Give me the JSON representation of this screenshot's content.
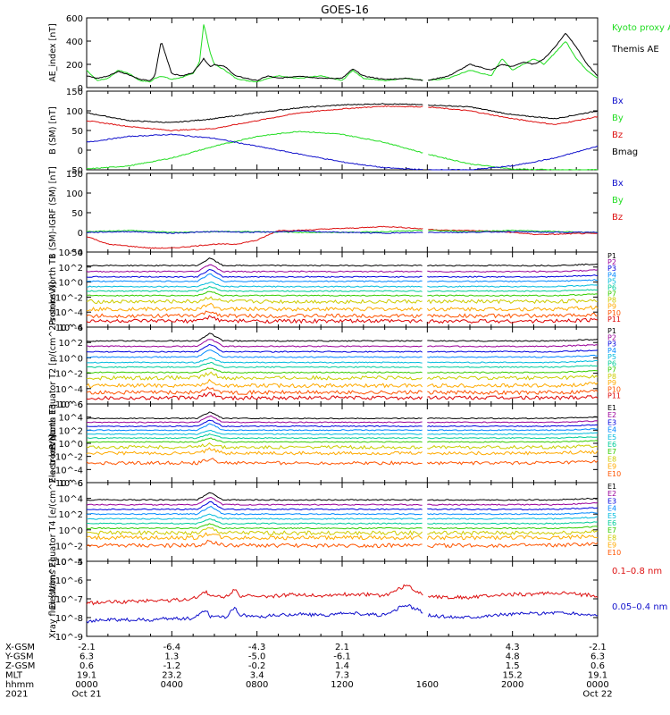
{
  "title": "GOES-16",
  "colors": {
    "black": "#000000",
    "green": "#22dd22",
    "red": "#dd1111",
    "blue": "#1111cc",
    "p_colors": [
      "#000000",
      "#990099",
      "#0000dd",
      "#0088ff",
      "#00bbdd",
      "#00cc99",
      "#33cc00",
      "#cccc00",
      "#ffaa00",
      "#ff5500",
      "#dd0000"
    ]
  },
  "chart_data": [
    {
      "type": "line",
      "id": "ae",
      "ylabel": "AE_index [nT]",
      "ylim": [
        0,
        600
      ],
      "yticks": [
        "0",
        "200",
        "400",
        "600"
      ],
      "legend": [
        {
          "name": "Kyoto proxy AE",
          "color": "green"
        },
        {
          "name": "Themis AE",
          "color": "black"
        }
      ],
      "series": [
        {
          "name": "Kyoto proxy AE",
          "color": "green",
          "x": [
            0,
            0.5,
            1,
            1.5,
            2,
            2.5,
            3,
            3.2,
            3.5,
            4,
            4.5,
            5,
            5.3,
            5.5,
            5.8,
            6,
            6.5,
            7,
            7.5,
            8,
            8.5,
            9,
            10,
            11,
            12,
            12.5,
            13,
            14,
            15,
            16,
            17,
            18,
            19,
            19.5,
            20,
            20.5,
            21,
            21.5,
            22,
            22.5,
            23,
            23.5,
            24
          ],
          "y": [
            150,
            60,
            80,
            150,
            120,
            60,
            50,
            80,
            100,
            70,
            90,
            120,
            220,
            550,
            300,
            200,
            150,
            80,
            60,
            50,
            80,
            100,
            80,
            100,
            60,
            150,
            80,
            60,
            80,
            60,
            80,
            150,
            100,
            250,
            150,
            200,
            250,
            200,
            300,
            400,
            250,
            150,
            80
          ]
        },
        {
          "name": "Themis AE",
          "color": "black",
          "x": [
            0,
            0.5,
            1,
            1.5,
            2,
            2.5,
            3,
            3.2,
            3.5,
            4,
            4.5,
            5,
            5.3,
            5.5,
            5.8,
            6,
            6.5,
            7,
            7.5,
            8,
            8.5,
            9,
            10,
            11,
            12,
            12.5,
            13,
            14,
            15,
            16,
            17,
            18,
            19,
            19.5,
            20,
            20.5,
            21,
            21.5,
            22,
            22.5,
            23,
            23.5,
            24
          ],
          "y": [
            100,
            80,
            100,
            140,
            110,
            70,
            60,
            100,
            400,
            120,
            100,
            130,
            200,
            250,
            180,
            200,
            180,
            100,
            80,
            60,
            100,
            80,
            100,
            80,
            80,
            160,
            100,
            70,
            80,
            60,
            100,
            200,
            150,
            200,
            180,
            220,
            200,
            250,
            350,
            470,
            350,
            200,
            100
          ]
        }
      ]
    },
    {
      "type": "line",
      "id": "bsm",
      "ylabel": "B (SM) [nT]",
      "ylim": [
        -50,
        150
      ],
      "yticks": [
        "-50",
        "0",
        "50",
        "100",
        "150"
      ],
      "legend": [
        {
          "name": "Bx",
          "color": "blue"
        },
        {
          "name": "By",
          "color": "green"
        },
        {
          "name": "Bz",
          "color": "red"
        },
        {
          "name": "Bmag",
          "color": "black"
        }
      ],
      "series": [
        {
          "name": "Bmag",
          "color": "black",
          "x": [
            0,
            2,
            4,
            6,
            8,
            10,
            12,
            14,
            16,
            18,
            20,
            22,
            24
          ],
          "y": [
            95,
            75,
            70,
            80,
            95,
            108,
            115,
            118,
            115,
            110,
            90,
            80,
            100
          ]
        },
        {
          "name": "Bz",
          "color": "red",
          "x": [
            0,
            2,
            4,
            6,
            8,
            10,
            12,
            14,
            16,
            18,
            20,
            22,
            24
          ],
          "y": [
            75,
            60,
            50,
            55,
            75,
            95,
            105,
            112,
            110,
            100,
            80,
            65,
            85
          ]
        },
        {
          "name": "By",
          "color": "green",
          "x": [
            0,
            2,
            4,
            6,
            8,
            10,
            12,
            14,
            16,
            18,
            20,
            22,
            24
          ],
          "y": [
            -48,
            -40,
            -20,
            10,
            35,
            48,
            40,
            20,
            -10,
            -35,
            -48,
            -50,
            -50
          ]
        },
        {
          "name": "Bx",
          "color": "blue",
          "x": [
            0,
            2,
            4,
            6,
            8,
            10,
            12,
            14,
            16,
            18,
            20,
            22,
            24
          ],
          "y": [
            20,
            35,
            40,
            30,
            10,
            -10,
            -30,
            -45,
            -50,
            -50,
            -40,
            -20,
            10
          ]
        }
      ]
    },
    {
      "type": "line",
      "id": "bdiff",
      "ylabel": "B (SM)-IGRF (SM) [nT]",
      "ylim": [
        -50,
        150
      ],
      "yticks": [
        "-50",
        "0",
        "50",
        "100",
        "150"
      ],
      "legend": [
        {
          "name": "Bx",
          "color": "blue"
        },
        {
          "name": "By",
          "color": "green"
        },
        {
          "name": "Bz",
          "color": "red"
        }
      ],
      "series": [
        {
          "name": "Bz",
          "color": "red",
          "x": [
            0,
            1,
            2,
            3,
            4,
            5,
            6,
            7,
            8,
            9,
            10,
            11,
            12,
            13,
            14,
            15,
            16,
            17,
            18,
            19,
            20,
            21,
            22,
            23,
            24
          ],
          "y": [
            -10,
            -30,
            -35,
            -40,
            -40,
            -35,
            -30,
            -30,
            -20,
            5,
            5,
            8,
            10,
            12,
            15,
            12,
            8,
            5,
            5,
            3,
            0,
            -5,
            -5,
            -3,
            -3
          ]
        },
        {
          "name": "By",
          "color": "green",
          "x": [
            0,
            2,
            4,
            6,
            8,
            10,
            12,
            14,
            16,
            18,
            20,
            22,
            24
          ],
          "y": [
            2,
            5,
            0,
            2,
            2,
            0,
            0,
            2,
            5,
            2,
            5,
            2,
            0
          ]
        },
        {
          "name": "Bx",
          "color": "blue",
          "x": [
            0,
            2,
            4,
            6,
            8,
            10,
            12,
            14,
            16,
            18,
            20,
            22,
            24
          ],
          "y": [
            0,
            2,
            -2,
            2,
            0,
            3,
            0,
            -2,
            0,
            0,
            2,
            0,
            0
          ]
        }
      ]
    },
    {
      "type": "line",
      "id": "protons_north",
      "log": true,
      "ylabel": "Protons North T1",
      "ylim": [
        -6,
        4
      ],
      "yticks": [
        "10^-6",
        "10^-4",
        "10^-2",
        "10^0",
        "10^2",
        "10^4"
      ],
      "legend": [
        "P1",
        "P2",
        "P3",
        "P4",
        "P5",
        "P6",
        "P7",
        "P8",
        "P9",
        "P10",
        "P11"
      ],
      "levels": [
        2.2,
        1.4,
        0.7,
        0.1,
        -0.6,
        -1.2,
        -1.8,
        -2.6,
        -3.6,
        -4.5,
        -5.2
      ],
      "spike_x": 5.8
    },
    {
      "type": "line",
      "id": "protons_equator",
      "log": true,
      "ylabel": "Protons Equator T2 [p/(cm^2-s-sr-keV)]",
      "ylim": [
        -6,
        4
      ],
      "yticks": [
        "10^-6",
        "10^-4",
        "10^-2",
        "10^0",
        "10^2",
        "10^4"
      ],
      "legend": [
        "P1",
        "P2",
        "P3",
        "P4",
        "P5",
        "P6",
        "P7",
        "P8",
        "P9",
        "P10",
        "P11"
      ],
      "levels": [
        2.2,
        1.5,
        0.8,
        0.1,
        -0.6,
        -1.2,
        -1.9,
        -2.6,
        -3.6,
        -4.5,
        -5.2
      ],
      "spike_x": 5.8
    },
    {
      "type": "line",
      "id": "electrons_north",
      "log": true,
      "ylabel": "Electrons North T3",
      "ylim": [
        -6,
        6
      ],
      "yticks": [
        "10^-6",
        "10^-4",
        "10^-2",
        "10^0",
        "10^2",
        "10^4",
        "10^6"
      ],
      "legend": [
        "E1",
        "E2",
        "E3",
        "E4",
        "E5",
        "E6",
        "E7",
        "E8",
        "E9",
        "E10"
      ],
      "levels": [
        3.8,
        3.2,
        2.6,
        2.0,
        1.4,
        0.8,
        0.2,
        -0.6,
        -1.5,
        -3.0
      ],
      "spike_x": 5.8
    },
    {
      "type": "line",
      "id": "electrons_equator",
      "log": true,
      "ylabel": "Electrons Equator T4 [e/(cm^2-s-sr-keV)]",
      "ylim": [
        -4,
        6
      ],
      "yticks": [
        "10^-4",
        "10^-2",
        "10^0",
        "10^2",
        "10^4",
        "10^6"
      ],
      "legend": [
        "E1",
        "E2",
        "E3",
        "E4",
        "E5",
        "E6",
        "E7",
        "E8",
        "E9",
        "E10"
      ],
      "levels": [
        3.8,
        3.2,
        2.6,
        2.0,
        1.4,
        0.8,
        0.2,
        -0.4,
        -1.0,
        -2.0
      ],
      "spike_x": 5.8
    },
    {
      "type": "line",
      "id": "xray",
      "log": true,
      "ylabel": "Xray flux [W/m^2]",
      "ylim": [
        -9,
        -4
      ],
      "yticks": [
        "10^-9",
        "10^-8",
        "10^-7",
        "10^-6",
        "10^-5"
      ],
      "legend": [
        {
          "name": "0.1–0.8 nm",
          "color": "red"
        },
        {
          "name": "0.05–0.4 nm",
          "color": "blue"
        }
      ],
      "series": [
        {
          "name": "0.1–0.8 nm",
          "color": "red",
          "x": [
            0,
            1,
            2,
            3,
            4,
            5,
            5.6,
            5.8,
            6,
            6.5,
            7,
            7.2,
            7.5,
            8,
            9,
            10,
            11,
            12,
            13,
            14,
            15,
            15.5,
            16,
            17,
            18,
            19,
            20,
            21,
            22,
            23,
            24
          ],
          "y": [
            -6.8,
            -6.7,
            -6.7,
            -6.6,
            -6.6,
            -6.5,
            -6.0,
            -6.4,
            -6.3,
            -6.4,
            -5.8,
            -6.3,
            -6.3,
            -6.4,
            -6.3,
            -6.2,
            -6.3,
            -6.2,
            -6.2,
            -6.3,
            -5.6,
            -6.0,
            -6.3,
            -6.4,
            -6.4,
            -6.3,
            -6.2,
            -6.2,
            -6.1,
            -6.2,
            -6.3
          ]
        },
        {
          "name": "0.05–0.4 nm",
          "color": "blue",
          "x": [
            0,
            1,
            2,
            3,
            4,
            5,
            5.6,
            5.8,
            6,
            6.5,
            7,
            7.2,
            7.5,
            8,
            9,
            10,
            11,
            12,
            13,
            14,
            15,
            15.5,
            16,
            17,
            18,
            19,
            20,
            21,
            22,
            23,
            24
          ],
          "y": [
            -8.0,
            -7.9,
            -7.9,
            -7.9,
            -7.8,
            -7.8,
            -7.2,
            -7.7,
            -7.6,
            -7.7,
            -7.1,
            -7.6,
            -7.6,
            -7.7,
            -7.6,
            -7.5,
            -7.6,
            -7.5,
            -7.5,
            -7.6,
            -6.9,
            -7.2,
            -7.6,
            -7.7,
            -7.7,
            -7.6,
            -7.5,
            -7.5,
            -7.4,
            -7.5,
            -7.6
          ]
        }
      ]
    }
  ],
  "xaxis": {
    "labels": [
      "X-GSM",
      "Y-GSM",
      "Z-GSM",
      "MLT",
      "hhmm",
      "2021"
    ],
    "columns": [
      {
        "x": 0,
        "values": [
          "-2.1",
          "6.3",
          "0.6",
          "19.1",
          "0000",
          "Oct 21"
        ]
      },
      {
        "x": 4,
        "values": [
          "-6.4",
          "1.3",
          "-1.2",
          "23.2",
          "0400",
          ""
        ]
      },
      {
        "x": 8,
        "values": [
          "-4.3",
          "-5.0",
          "-0.2",
          "3.4",
          "0800",
          ""
        ]
      },
      {
        "x": 12,
        "values": [
          "2.1",
          "-6.1",
          "1.4",
          "7.3",
          "1200",
          ""
        ]
      },
      {
        "x": 16,
        "values": [
          "",
          "",
          "",
          "",
          "1600",
          ""
        ]
      },
      {
        "x": 20,
        "values": [
          "4.3",
          "4.8",
          "1.5",
          "15.2",
          "2000",
          ""
        ]
      },
      {
        "x": 24,
        "values": [
          "-2.1",
          "6.3",
          "0.6",
          "19.1",
          "0000",
          "Oct 22"
        ]
      }
    ]
  }
}
